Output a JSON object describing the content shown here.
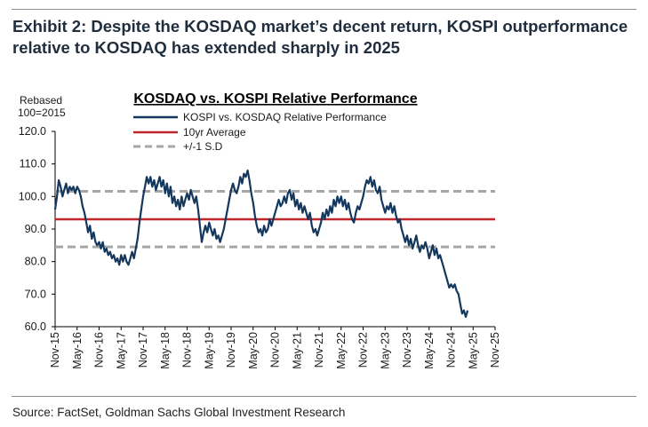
{
  "exhibit": {
    "title": "Exhibit 2: Despite the KOSDAQ market’s decent return, KOSPI outperformance relative to KOSDAQ has extended sharply in 2025",
    "source": "Source: FactSet, Goldman Sachs Global Investment Research"
  },
  "chart_data": {
    "type": "line",
    "title": "KOSDAQ vs. KOSPI Relative Performance",
    "ylabel_lines": [
      "Rebased",
      "100=2015"
    ],
    "xlabel": "",
    "ylim": [
      60,
      120
    ],
    "yticks": [
      60,
      70,
      80,
      90,
      100,
      110,
      120
    ],
    "ytick_labels": [
      "60.0",
      "70.0",
      "80.0",
      "90.0",
      "100.0",
      "110.0",
      "120.0"
    ],
    "x_range_months": [
      0,
      120
    ],
    "xticks": [
      {
        "label": "Nov-15",
        "month": 0
      },
      {
        "label": "May-16",
        "month": 6
      },
      {
        "label": "Nov-16",
        "month": 12
      },
      {
        "label": "May-17",
        "month": 18
      },
      {
        "label": "Nov-17",
        "month": 24
      },
      {
        "label": "May-18",
        "month": 30
      },
      {
        "label": "Nov-18",
        "month": 36
      },
      {
        "label": "May-19",
        "month": 42
      },
      {
        "label": "Nov-19",
        "month": 48
      },
      {
        "label": "May-20",
        "month": 54
      },
      {
        "label": "Nov-20",
        "month": 60
      },
      {
        "label": "May-21",
        "month": 66
      },
      {
        "label": "Nov-21",
        "month": 72
      },
      {
        "label": "May-22",
        "month": 78
      },
      {
        "label": "Nov-22",
        "month": 84
      },
      {
        "label": "May-23",
        "month": 90
      },
      {
        "label": "Nov-23",
        "month": 96
      },
      {
        "label": "May-24",
        "month": 102
      },
      {
        "label": "Nov-24",
        "month": 108
      },
      {
        "label": "May-25",
        "month": 114
      },
      {
        "label": "Nov-25",
        "month": 120
      }
    ],
    "legend": [
      {
        "label": "KOSPI vs. KOSDAQ Relative Performance",
        "style": "solid",
        "color": "#14375e"
      },
      {
        "label": "10yr Average",
        "style": "solid",
        "color": "#c0272d"
      },
      {
        "label": "+/-1 S.D",
        "style": "dashed",
        "color": "#a6a6a6"
      }
    ],
    "reference_lines": {
      "average": 93.0,
      "upper_sd": 101.6,
      "lower_sd": 84.5
    },
    "series": [
      {
        "name": "KOSPI vs. KOSDAQ Relative Performance",
        "color": "#14375e",
        "points": [
          [
            0,
            96
          ],
          [
            0.5,
            100
          ],
          [
            1,
            105
          ],
          [
            1.5,
            103
          ],
          [
            2,
            100
          ],
          [
            2.5,
            102
          ],
          [
            3,
            104
          ],
          [
            3.5,
            101
          ],
          [
            4,
            103
          ],
          [
            4.5,
            102
          ],
          [
            5,
            103
          ],
          [
            5.5,
            101
          ],
          [
            6,
            103
          ],
          [
            6.5,
            102
          ],
          [
            7,
            100
          ],
          [
            7.5,
            97
          ],
          [
            8,
            95
          ],
          [
            8.5,
            92
          ],
          [
            9,
            89
          ],
          [
            9.5,
            91
          ],
          [
            10,
            87
          ],
          [
            10.5,
            89
          ],
          [
            11,
            86
          ],
          [
            11.5,
            85
          ],
          [
            12,
            86
          ],
          [
            12.5,
            84
          ],
          [
            13,
            86
          ],
          [
            13.5,
            83
          ],
          [
            14,
            84
          ],
          [
            14.5,
            82
          ],
          [
            15,
            83
          ],
          [
            15.5,
            81
          ],
          [
            16,
            82
          ],
          [
            16.5,
            80
          ],
          [
            17,
            81
          ],
          [
            17.5,
            79
          ],
          [
            18,
            82
          ],
          [
            18.5,
            80
          ],
          [
            19,
            82
          ],
          [
            19.5,
            80
          ],
          [
            20,
            79
          ],
          [
            20.5,
            81
          ],
          [
            21,
            83
          ],
          [
            21.5,
            81
          ],
          [
            22,
            84
          ],
          [
            22.5,
            87
          ],
          [
            23,
            92
          ],
          [
            23.5,
            96
          ],
          [
            24,
            100
          ],
          [
            24.5,
            103
          ],
          [
            25,
            106
          ],
          [
            25.5,
            104
          ],
          [
            26,
            106
          ],
          [
            26.5,
            103
          ],
          [
            27,
            105
          ],
          [
            27.5,
            102
          ],
          [
            28,
            104
          ],
          [
            28.5,
            106
          ],
          [
            29,
            103
          ],
          [
            29.5,
            105
          ],
          [
            30,
            101
          ],
          [
            30.5,
            104
          ],
          [
            31,
            100
          ],
          [
            31.5,
            103
          ],
          [
            32,
            98
          ],
          [
            32.5,
            100
          ],
          [
            33,
            97
          ],
          [
            33.5,
            99
          ],
          [
            34,
            96
          ],
          [
            34.5,
            100
          ],
          [
            35,
            97
          ],
          [
            35.5,
            99
          ],
          [
            36,
            101
          ],
          [
            36.5,
            99
          ],
          [
            37,
            102
          ],
          [
            37.5,
            100
          ],
          [
            38,
            98
          ],
          [
            38.5,
            100
          ],
          [
            39,
            96
          ],
          [
            39.5,
            91
          ],
          [
            40,
            86
          ],
          [
            40.5,
            89
          ],
          [
            41,
            91
          ],
          [
            41.5,
            89
          ],
          [
            42,
            92
          ],
          [
            42.5,
            90
          ],
          [
            43,
            88
          ],
          [
            43.5,
            90
          ],
          [
            44,
            87
          ],
          [
            44.5,
            88
          ],
          [
            45,
            86
          ],
          [
            45.5,
            88
          ],
          [
            46,
            90
          ],
          [
            46.5,
            93
          ],
          [
            47,
            96
          ],
          [
            47.5,
            99
          ],
          [
            48,
            102
          ],
          [
            48.5,
            104
          ],
          [
            49,
            102
          ],
          [
            49.5,
            101
          ],
          [
            50,
            103
          ],
          [
            50.5,
            106
          ],
          [
            51,
            104
          ],
          [
            51.5,
            107
          ],
          [
            52,
            106
          ],
          [
            52.5,
            108
          ],
          [
            53,
            105
          ],
          [
            53.5,
            101
          ],
          [
            54,
            98
          ],
          [
            54.5,
            94
          ],
          [
            55,
            91
          ],
          [
            55.5,
            89
          ],
          [
            56,
            90
          ],
          [
            56.5,
            88
          ],
          [
            57,
            91
          ],
          [
            57.5,
            89
          ],
          [
            58,
            90
          ],
          [
            58.5,
            93
          ],
          [
            59,
            91
          ],
          [
            59.5,
            93
          ],
          [
            60,
            95
          ],
          [
            60.5,
            97
          ],
          [
            61,
            99
          ],
          [
            61.5,
            97
          ],
          [
            62,
            98
          ],
          [
            62.5,
            100
          ],
          [
            63,
            98
          ],
          [
            63.5,
            101
          ],
          [
            64,
            102
          ],
          [
            64.5,
            99
          ],
          [
            65,
            101
          ],
          [
            65.5,
            97
          ],
          [
            66,
            99
          ],
          [
            66.5,
            96
          ],
          [
            67,
            98
          ],
          [
            67.5,
            95
          ],
          [
            68,
            97
          ],
          [
            68.5,
            95
          ],
          [
            69,
            93
          ],
          [
            69.5,
            95
          ],
          [
            70,
            91
          ],
          [
            70.5,
            89
          ],
          [
            71,
            90
          ],
          [
            71.5,
            88
          ],
          [
            72,
            90
          ],
          [
            72.5,
            92
          ],
          [
            73,
            95
          ],
          [
            73.5,
            93
          ],
          [
            74,
            96
          ],
          [
            74.5,
            94
          ],
          [
            75,
            97
          ],
          [
            75.5,
            95
          ],
          [
            76,
            99
          ],
          [
            76.5,
            97
          ],
          [
            77,
            100
          ],
          [
            77.5,
            98
          ],
          [
            78,
            100
          ],
          [
            78.5,
            97
          ],
          [
            79,
            99
          ],
          [
            79.5,
            96
          ],
          [
            80,
            98
          ],
          [
            80.5,
            95
          ],
          [
            81,
            93
          ],
          [
            81.5,
            92
          ],
          [
            82,
            95
          ],
          [
            82.5,
            97
          ],
          [
            83,
            96
          ],
          [
            83.5,
            98
          ],
          [
            84,
            100
          ],
          [
            84.5,
            103
          ],
          [
            85,
            105
          ],
          [
            85.5,
            104
          ],
          [
            86,
            106
          ],
          [
            86.5,
            103
          ],
          [
            87,
            105
          ],
          [
            87.5,
            102
          ],
          [
            88,
            101
          ],
          [
            88.5,
            103
          ],
          [
            89,
            99
          ],
          [
            89.5,
            97
          ],
          [
            90,
            95
          ],
          [
            90.5,
            97
          ],
          [
            91,
            96
          ],
          [
            91.5,
            98
          ],
          [
            92,
            95
          ],
          [
            92.5,
            97
          ],
          [
            93,
            94
          ],
          [
            93.5,
            92
          ],
          [
            94,
            93
          ],
          [
            94.5,
            90
          ],
          [
            95,
            88
          ],
          [
            95.5,
            86
          ],
          [
            96,
            88
          ],
          [
            96.5,
            85
          ],
          [
            97,
            87
          ],
          [
            97.5,
            84
          ],
          [
            98,
            86
          ],
          [
            98.5,
            88
          ],
          [
            99,
            85
          ],
          [
            99.5,
            83
          ],
          [
            100,
            85
          ],
          [
            100.5,
            84
          ],
          [
            101,
            86
          ],
          [
            101.5,
            84
          ],
          [
            102,
            81
          ],
          [
            102.5,
            83
          ],
          [
            103,
            85
          ],
          [
            103.5,
            82
          ],
          [
            104,
            84
          ],
          [
            104.5,
            81
          ],
          [
            105,
            82
          ],
          [
            105.5,
            80
          ],
          [
            106,
            78
          ],
          [
            106.5,
            76
          ],
          [
            107,
            74
          ],
          [
            107.5,
            72
          ],
          [
            108,
            73
          ],
          [
            108.5,
            72
          ],
          [
            109,
            73
          ],
          [
            109.5,
            71
          ],
          [
            110,
            70
          ],
          [
            110.5,
            67
          ],
          [
            111,
            64
          ],
          [
            111.5,
            65
          ],
          [
            112,
            63
          ],
          [
            112.5,
            65
          ]
        ]
      }
    ]
  }
}
